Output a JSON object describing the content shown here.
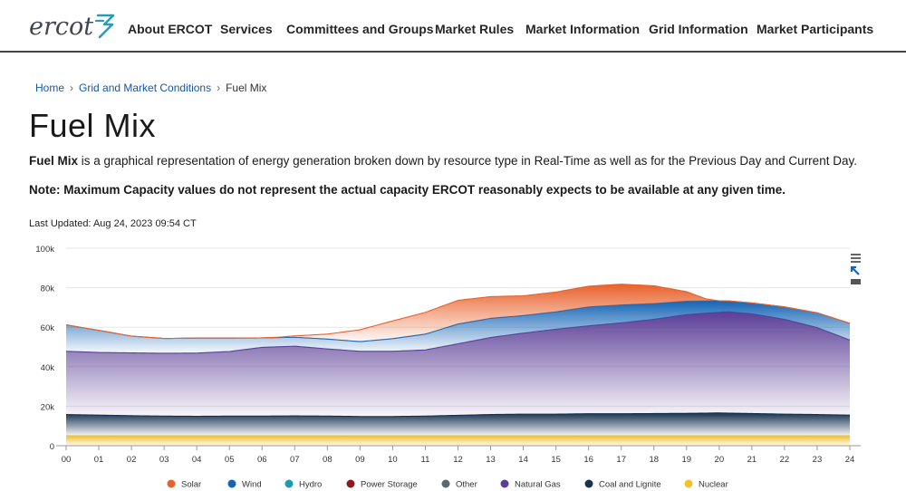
{
  "header": {
    "logo_text": "ercot",
    "nav": [
      "About ERCOT",
      "Services",
      "Committees and Groups",
      "Market Rules",
      "Market Information",
      "Grid Information",
      "Market Participants"
    ]
  },
  "breadcrumb": {
    "home": "Home",
    "parent": "Grid and Market Conditions",
    "current": "Fuel Mix"
  },
  "page": {
    "title": "Fuel Mix",
    "desc_bold": "Fuel Mix",
    "desc_rest": " is a graphical representation of energy generation broken down by resource type in Real-Time as well as for the Previous Day and Current Day.",
    "note": "Note: Maximum Capacity values do not represent the actual capacity ERCOT reasonably expects to be available at any given time.",
    "last_updated": "Last Updated: Aug 24, 2023 09:54 CT"
  },
  "colors": {
    "solar": "#e8622c",
    "wind": "#1565b5",
    "hydro": "#1c9bb0",
    "power_storage": "#8b1b1b",
    "other": "#5b6770",
    "natural_gas": "#5b3e96",
    "coal_lignite": "#16324f",
    "nuclear": "#f2c12e"
  },
  "chart_data": {
    "type": "area",
    "stacked": true,
    "title": "",
    "xlabel": "",
    "ylabel": "",
    "x_ticks": [
      "00",
      "01",
      "02",
      "03",
      "04",
      "05",
      "06",
      "07",
      "08",
      "09",
      "10",
      "11",
      "12",
      "13",
      "14",
      "15",
      "16",
      "17",
      "18",
      "19",
      "20",
      "21",
      "22",
      "23",
      "24"
    ],
    "y_ticks": [
      "0",
      "20k",
      "40k",
      "60k",
      "80k",
      "100k"
    ],
    "ylim": [
      0,
      100000
    ],
    "xlim": [
      0,
      24
    ],
    "grid": true,
    "legend_position": "bottom",
    "series": [
      {
        "name": "Nuclear",
        "color_key": "nuclear",
        "x": [
          0,
          2,
          4,
          6,
          8,
          10,
          12,
          14,
          16,
          18,
          20,
          22,
          24
        ],
        "values": [
          5000,
          5000,
          5000,
          5000,
          5000,
          5000,
          5000,
          5000,
          5000,
          5000,
          5000,
          5000,
          5000
        ]
      },
      {
        "name": "Coal and Lignite",
        "color_key": "coal_lignite",
        "x": [
          0,
          1,
          2,
          3,
          4,
          5,
          6,
          7,
          8,
          9,
          10,
          11,
          12,
          13,
          14,
          15,
          16,
          17,
          18,
          19,
          20,
          21,
          22,
          23,
          24
        ],
        "values": [
          10800,
          10500,
          10200,
          10000,
          9900,
          10000,
          10000,
          10100,
          10000,
          9800,
          9800,
          10000,
          10400,
          10800,
          11000,
          11000,
          11200,
          11200,
          11300,
          11400,
          11600,
          11300,
          11000,
          10800,
          10500
        ]
      },
      {
        "name": "Natural Gas",
        "color_key": "natural_gas",
        "x": [
          0,
          1,
          2,
          3,
          4,
          5,
          6,
          7,
          8,
          9,
          10,
          11,
          12,
          13,
          14,
          15,
          16,
          17,
          18,
          19,
          20,
          20.3,
          21,
          22,
          23,
          24
        ],
        "values": [
          32000,
          31700,
          31800,
          31800,
          32000,
          32700,
          34800,
          35300,
          34000,
          33000,
          33000,
          33500,
          36200,
          39000,
          41000,
          43000,
          44500,
          46000,
          47700,
          50000,
          51000,
          51300,
          50500,
          48000,
          44000,
          38000
        ]
      },
      {
        "name": "Wind",
        "color_key": "wind",
        "x": [
          0,
          1,
          2,
          3,
          4,
          5,
          6,
          7,
          8,
          9,
          10,
          11,
          12,
          13,
          14,
          15,
          16,
          17,
          18,
          19,
          20,
          20.3,
          21,
          22,
          23,
          24
        ],
        "values": [
          13400,
          11200,
          8500,
          7500,
          7600,
          6800,
          4800,
          4500,
          5000,
          4900,
          6400,
          8000,
          10000,
          9700,
          8900,
          8800,
          9600,
          9100,
          8000,
          6800,
          5800,
          5500,
          5500,
          6300,
          7500,
          8500
        ]
      },
      {
        "name": "Solar",
        "color_key": "solar",
        "x": [
          0,
          6,
          6.5,
          7,
          8,
          9,
          10,
          11,
          12,
          13,
          14,
          15,
          16,
          17,
          18,
          19,
          19.6,
          20,
          24
        ],
        "values": [
          0,
          0,
          200,
          700,
          2500,
          6000,
          9000,
          11000,
          12000,
          11000,
          10000,
          10000,
          10500,
          10500,
          9000,
          4800,
          1000,
          0,
          0
        ]
      },
      {
        "name": "Power Storage",
        "color_key": "power_storage",
        "values": []
      },
      {
        "name": "Hydro",
        "color_key": "hydro",
        "values": []
      },
      {
        "name": "Other",
        "color_key": "other",
        "values": []
      }
    ],
    "legend": [
      {
        "label": "Solar",
        "color_key": "solar"
      },
      {
        "label": "Wind",
        "color_key": "wind"
      },
      {
        "label": "Hydro",
        "color_key": "hydro"
      },
      {
        "label": "Power Storage",
        "color_key": "power_storage"
      },
      {
        "label": "Other",
        "color_key": "other"
      },
      {
        "label": "Natural Gas",
        "color_key": "natural_gas"
      },
      {
        "label": "Coal and Lignite",
        "color_key": "coal_lignite"
      },
      {
        "label": "Nuclear",
        "color_key": "nuclear"
      }
    ]
  }
}
